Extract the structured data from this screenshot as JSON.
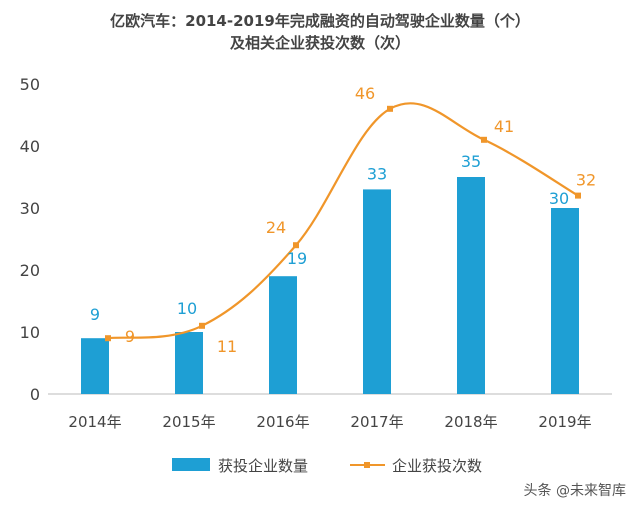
{
  "chart_data": {
    "type": "bar+line",
    "title": "亿欧汽车：2014-2019年完成融资的自动驾驶企业数量（个）",
    "subtitle": "及相关企业获投次数（次）",
    "categories": [
      "2014年",
      "2015年",
      "2016年",
      "2017年",
      "2018年",
      "2019年"
    ],
    "series": [
      {
        "name": "获投企业数量",
        "type": "bar",
        "color": "#1e9fd4",
        "values": [
          9,
          10,
          19,
          33,
          35,
          30
        ]
      },
      {
        "name": "企业获投次数",
        "type": "line",
        "smooth": true,
        "color": "#f0962a",
        "values": [
          9,
          11,
          24,
          46,
          41,
          32
        ]
      }
    ],
    "yticks": [
      0,
      10,
      20,
      30,
      40,
      50
    ],
    "ylim": [
      0,
      50
    ],
    "grid": false,
    "legend": "bottom"
  },
  "watermark": "头条 @未来智库"
}
